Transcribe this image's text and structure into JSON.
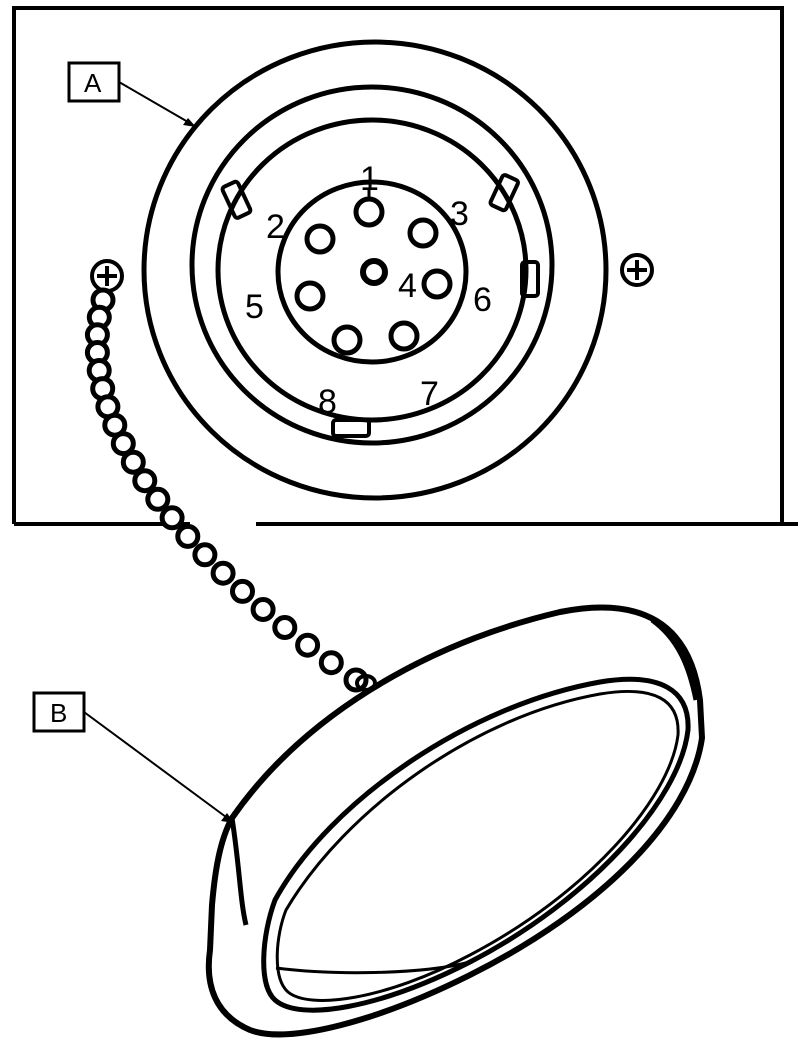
{
  "callouts": {
    "a": "A",
    "b": "B"
  },
  "pins": [
    "1",
    "2",
    "3",
    "4",
    "5",
    "6",
    "7",
    "8"
  ],
  "colors": {
    "ink": "#000000",
    "paper": "#ffffff"
  }
}
